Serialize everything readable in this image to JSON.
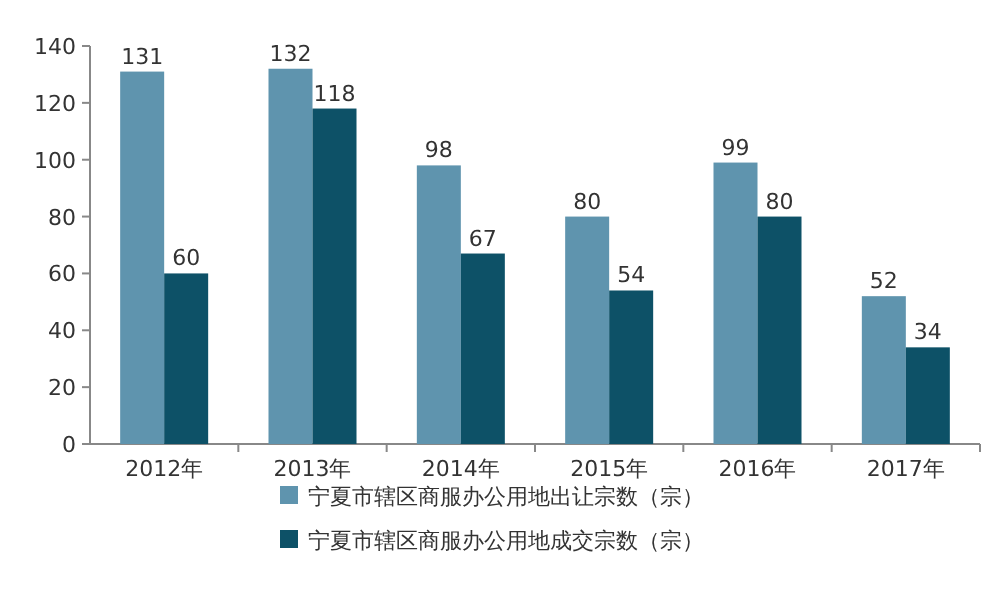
{
  "chart_data": {
    "type": "bar",
    "categories": [
      "2012年",
      "2013年",
      "2014年",
      "2015年",
      "2016年",
      "2017年"
    ],
    "series": [
      {
        "name": "宁夏市辖区商服办公用地出让宗数（宗）",
        "color": "#5f94ae",
        "values": [
          131,
          132,
          98,
          80,
          99,
          52
        ]
      },
      {
        "name": "宁夏市辖区商服办公用地成交宗数（宗）",
        "color": "#0d5167",
        "values": [
          60,
          118,
          67,
          54,
          80,
          34
        ]
      }
    ],
    "ylim": [
      0,
      140
    ],
    "yticks": [
      0,
      20,
      40,
      60,
      80,
      100,
      120,
      140
    ],
    "data_labels": true,
    "legend": "bottom"
  }
}
